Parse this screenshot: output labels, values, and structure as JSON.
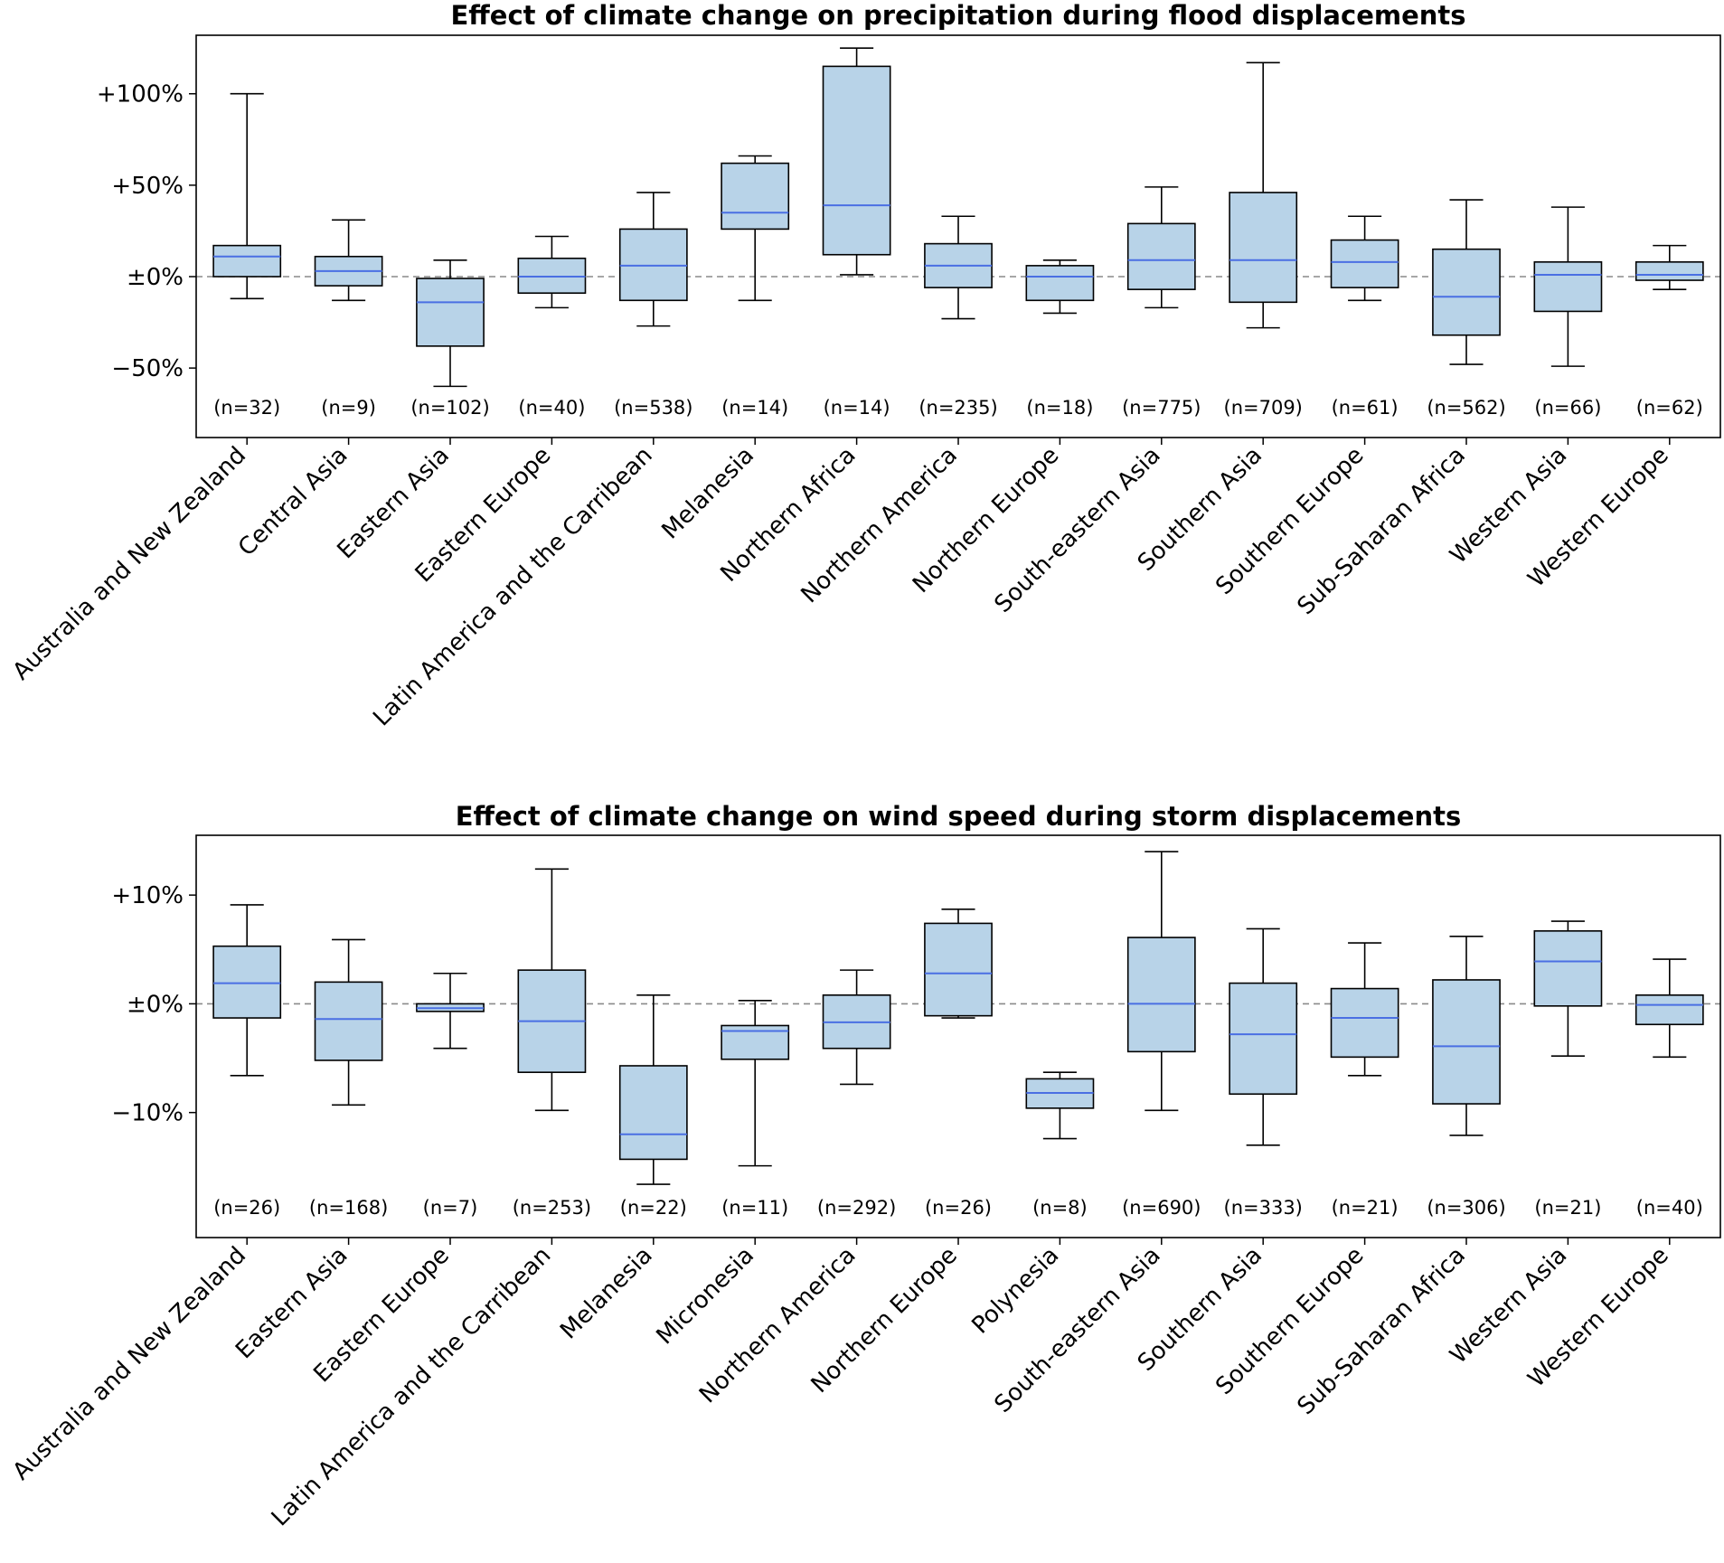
{
  "chart_data": [
    {
      "type": "box",
      "title": "Effect of climate change on precipitation during flood displacements",
      "xlabel": "",
      "ylabel": "",
      "ylim": [
        -88,
        132
      ],
      "yticks": [
        -50,
        0,
        50,
        100
      ],
      "ytick_labels": [
        "−50%",
        "±0%",
        "+50%",
        "+100%"
      ],
      "reference_line": 0,
      "colors": {
        "box_fill": "#b8d3e8",
        "median": "#4a6fe3",
        "edge": "#000000",
        "reference": "#8a8a8a"
      },
      "categories": [
        "Australia and New Zealand",
        "Central Asia",
        "Eastern Asia",
        "Eastern Europe",
        "Latin America and the Carribean",
        "Melanesia",
        "Northern Africa",
        "Northern America",
        "Northern Europe",
        "South-eastern Asia",
        "Southern Asia",
        "Southern Europe",
        "Sub-Saharan Africa",
        "Western Asia",
        "Western Europe"
      ],
      "n_labels": [
        "(n=32)",
        "(n=9)",
        "(n=102)",
        "(n=40)",
        "(n=538)",
        "(n=14)",
        "(n=14)",
        "(n=235)",
        "(n=18)",
        "(n=775)",
        "(n=709)",
        "(n=61)",
        "(n=562)",
        "(n=66)",
        "(n=62)"
      ],
      "boxes": [
        {
          "whislo": -12,
          "q1": 0,
          "med": 11,
          "q3": 17,
          "whishi": 100
        },
        {
          "whislo": -13,
          "q1": -5,
          "med": 3,
          "q3": 11,
          "whishi": 31
        },
        {
          "whislo": -60,
          "q1": -38,
          "med": -14,
          "q3": -1,
          "whishi": 9
        },
        {
          "whislo": -17,
          "q1": -9,
          "med": 0,
          "q3": 10,
          "whishi": 22
        },
        {
          "whislo": -27,
          "q1": -13,
          "med": 6,
          "q3": 26,
          "whishi": 46
        },
        {
          "whislo": -13,
          "q1": 26,
          "med": 35,
          "q3": 62,
          "whishi": 66
        },
        {
          "whislo": 1,
          "q1": 12,
          "med": 39,
          "q3": 115,
          "whishi": 125
        },
        {
          "whislo": -23,
          "q1": -6,
          "med": 6,
          "q3": 18,
          "whishi": 33
        },
        {
          "whislo": -20,
          "q1": -13,
          "med": 0,
          "q3": 6,
          "whishi": 9
        },
        {
          "whislo": -17,
          "q1": -7,
          "med": 9,
          "q3": 29,
          "whishi": 49
        },
        {
          "whislo": -28,
          "q1": -14,
          "med": 9,
          "q3": 46,
          "whishi": 117
        },
        {
          "whislo": -13,
          "q1": -6,
          "med": 8,
          "q3": 20,
          "whishi": 33
        },
        {
          "whislo": -48,
          "q1": -32,
          "med": -11,
          "q3": 15,
          "whishi": 42
        },
        {
          "whislo": -49,
          "q1": -19,
          "med": 1,
          "q3": 8,
          "whishi": 38
        },
        {
          "whislo": -7,
          "q1": -2,
          "med": 1,
          "q3": 8,
          "whishi": 17
        }
      ]
    },
    {
      "type": "box",
      "title": "Effect of climate change on wind speed during storm displacements",
      "xlabel": "",
      "ylabel": "",
      "ylim": [
        -21.5,
        15.5
      ],
      "yticks": [
        -10,
        0,
        10
      ],
      "ytick_labels": [
        "−10%",
        "±0%",
        "+10%"
      ],
      "reference_line": 0,
      "colors": {
        "box_fill": "#b8d3e8",
        "median": "#4a6fe3",
        "edge": "#000000",
        "reference": "#8a8a8a"
      },
      "categories": [
        "Australia and New Zealand",
        "Eastern Asia",
        "Eastern Europe",
        "Latin America and the Carribean",
        "Melanesia",
        "Micronesia",
        "Northern America",
        "Northern Europe",
        "Polynesia",
        "South-eastern Asia",
        "Southern Asia",
        "Southern Europe",
        "Sub-Saharan Africa",
        "Western Asia",
        "Western Europe"
      ],
      "n_labels": [
        "(n=26)",
        "(n=168)",
        "(n=7)",
        "(n=253)",
        "(n=22)",
        "(n=11)",
        "(n=292)",
        "(n=26)",
        "(n=8)",
        "(n=690)",
        "(n=333)",
        "(n=21)",
        "(n=306)",
        "(n=21)",
        "(n=40)"
      ],
      "boxes": [
        {
          "whislo": -6.6,
          "q1": -1.3,
          "med": 1.9,
          "q3": 5.3,
          "whishi": 9.1
        },
        {
          "whislo": -9.3,
          "q1": -5.2,
          "med": -1.4,
          "q3": 2.0,
          "whishi": 5.9
        },
        {
          "whislo": -4.1,
          "q1": -0.7,
          "med": -0.4,
          "q3": 0.0,
          "whishi": 2.8
        },
        {
          "whislo": -9.8,
          "q1": -6.3,
          "med": -1.6,
          "q3": 3.1,
          "whishi": 12.4
        },
        {
          "whislo": -16.6,
          "q1": -14.3,
          "med": -12.0,
          "q3": -5.7,
          "whishi": 0.8
        },
        {
          "whislo": -14.9,
          "q1": -5.1,
          "med": -2.5,
          "q3": -2.0,
          "whishi": 0.3
        },
        {
          "whislo": -7.4,
          "q1": -4.1,
          "med": -1.7,
          "q3": 0.8,
          "whishi": 3.1
        },
        {
          "whislo": -1.3,
          "q1": -1.1,
          "med": 2.8,
          "q3": 7.4,
          "whishi": 8.7
        },
        {
          "whislo": -12.4,
          "q1": -9.6,
          "med": -8.2,
          "q3": -6.9,
          "whishi": -6.3
        },
        {
          "whislo": -9.8,
          "q1": -4.4,
          "med": 0.0,
          "q3": 6.1,
          "whishi": 14.0
        },
        {
          "whislo": -13.0,
          "q1": -8.3,
          "med": -2.8,
          "q3": 1.9,
          "whishi": 6.9
        },
        {
          "whislo": -6.6,
          "q1": -4.9,
          "med": -1.3,
          "q3": 1.4,
          "whishi": 5.6
        },
        {
          "whislo": -12.1,
          "q1": -9.2,
          "med": -3.9,
          "q3": 2.2,
          "whishi": 6.2
        },
        {
          "whislo": -4.8,
          "q1": -0.2,
          "med": 3.9,
          "q3": 6.7,
          "whishi": 7.6
        },
        {
          "whislo": -4.9,
          "q1": -1.9,
          "med": -0.1,
          "q3": 0.8,
          "whishi": 4.1
        }
      ]
    }
  ]
}
